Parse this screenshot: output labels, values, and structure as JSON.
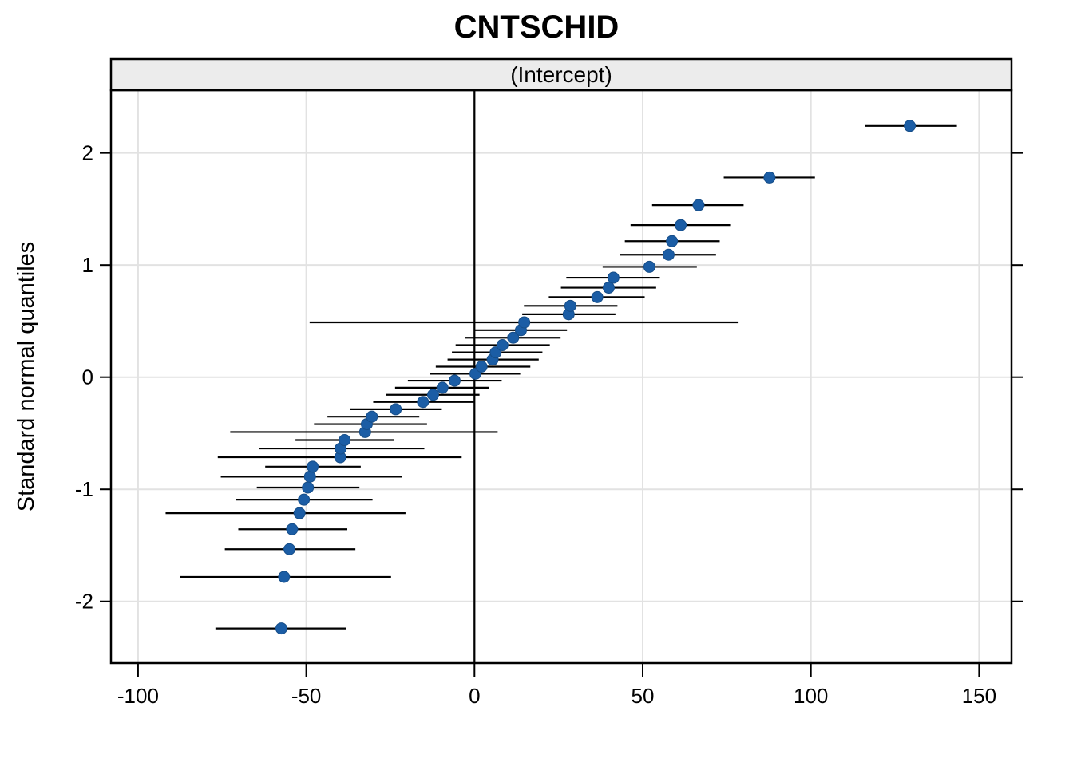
{
  "title": "CNTSCHID",
  "strip_label": "(Intercept)",
  "ylabel": "Standard normal quantiles",
  "colors": {
    "point": "#1B5DA5",
    "point_edge": "#174E88",
    "error_bar": "#000000",
    "grid": "#E2E2E2",
    "reference_line": "#000000",
    "strip_fill": "#ECECEC",
    "border": "#000000",
    "background": "#FFFFFF",
    "text": "#000000"
  },
  "chart_data": {
    "type": "scatter",
    "subtype": "caterpillar-qq-dotplot-with-ci",
    "title": "CNTSCHID",
    "panel_label": "(Intercept)",
    "xlabel": "",
    "ylabel": "Standard normal quantiles",
    "xlim": [
      -108,
      160
    ],
    "ylim": [
      -2.55,
      2.56
    ],
    "x_ticks": [
      -100,
      -50,
      0,
      50,
      100,
      150
    ],
    "x_tick_labels": [
      "-100",
      "-50",
      "0",
      "50",
      "100",
      "150"
    ],
    "y_ticks": [
      -2,
      -1,
      0,
      1,
      2
    ],
    "y_tick_labels": [
      "-2",
      "-1",
      "0",
      "1",
      "2"
    ],
    "grid": true,
    "reference_line_x": 0,
    "legend": "none",
    "n_points": 40,
    "points": [
      {
        "q": -2.241,
        "est": -57.4,
        "lo": -77.0,
        "hi": -38.2
      },
      {
        "q": -1.781,
        "est": -56.6,
        "lo": -87.6,
        "hi": -24.8
      },
      {
        "q": -1.534,
        "est": -55.0,
        "lo": -74.2,
        "hi": -35.4
      },
      {
        "q": -1.356,
        "est": -54.2,
        "lo": -70.2,
        "hi": -37.8
      },
      {
        "q": -1.213,
        "est": -52.0,
        "lo": -91.8,
        "hi": -20.5
      },
      {
        "q": -1.092,
        "est": -50.7,
        "lo": -70.8,
        "hi": -30.3
      },
      {
        "q": -0.984,
        "est": -49.5,
        "lo": -64.7,
        "hi": -34.2
      },
      {
        "q": -0.887,
        "est": -48.9,
        "lo": -75.4,
        "hi": -21.6
      },
      {
        "q": -0.798,
        "est": -48.1,
        "lo": -62.2,
        "hi": -33.8
      },
      {
        "q": -0.714,
        "est": -39.9,
        "lo": -76.3,
        "hi": -3.8
      },
      {
        "q": -0.636,
        "est": -39.8,
        "lo": -64.1,
        "hi": -14.9
      },
      {
        "q": -0.561,
        "est": -38.6,
        "lo": -53.2,
        "hi": -24.0
      },
      {
        "q": -0.489,
        "est": -32.5,
        "lo": -72.6,
        "hi": 6.9
      },
      {
        "q": -0.419,
        "est": -32.0,
        "lo": -47.7,
        "hi": -14.1
      },
      {
        "q": -0.352,
        "est": -30.5,
        "lo": -43.7,
        "hi": -16.4
      },
      {
        "q": -0.286,
        "est": -23.4,
        "lo": -37.0,
        "hi": -9.7
      },
      {
        "q": -0.221,
        "est": -15.3,
        "lo": -30.1,
        "hi": -0.2
      },
      {
        "q": -0.157,
        "est": -12.3,
        "lo": -26.2,
        "hi": 1.5
      },
      {
        "q": -0.094,
        "est": -9.5,
        "lo": -23.6,
        "hi": 4.4
      },
      {
        "q": -0.031,
        "est": -5.9,
        "lo": -19.8,
        "hi": 8.1
      },
      {
        "q": 0.031,
        "est": 0.3,
        "lo": -13.3,
        "hi": 13.6
      },
      {
        "q": 0.094,
        "est": 2.1,
        "lo": -11.5,
        "hi": 16.6
      },
      {
        "q": 0.157,
        "est": 5.4,
        "lo": -8.0,
        "hi": 19.1
      },
      {
        "q": 0.221,
        "est": 6.3,
        "lo": -6.7,
        "hi": 20.2
      },
      {
        "q": 0.286,
        "est": 8.3,
        "lo": -5.6,
        "hi": 22.4
      },
      {
        "q": 0.352,
        "est": 11.5,
        "lo": -2.8,
        "hi": 25.6
      },
      {
        "q": 0.419,
        "est": 13.8,
        "lo": 0.0,
        "hi": 27.5
      },
      {
        "q": 0.489,
        "est": 14.8,
        "lo": -49.0,
        "hi": 78.5
      },
      {
        "q": 0.561,
        "est": 28.0,
        "lo": 14.2,
        "hi": 41.9
      },
      {
        "q": 0.636,
        "est": 28.5,
        "lo": 14.7,
        "hi": 42.5
      },
      {
        "q": 0.714,
        "est": 36.5,
        "lo": 22.1,
        "hi": 50.6
      },
      {
        "q": 0.798,
        "est": 39.9,
        "lo": 25.7,
        "hi": 54.0
      },
      {
        "q": 0.887,
        "est": 41.3,
        "lo": 27.3,
        "hi": 55.1
      },
      {
        "q": 0.984,
        "est": 52.0,
        "lo": 38.1,
        "hi": 66.1
      },
      {
        "q": 1.092,
        "est": 57.7,
        "lo": 43.3,
        "hi": 71.8
      },
      {
        "q": 1.213,
        "est": 58.7,
        "lo": 44.7,
        "hi": 72.9
      },
      {
        "q": 1.356,
        "est": 61.3,
        "lo": 46.4,
        "hi": 76.0
      },
      {
        "q": 1.534,
        "est": 66.6,
        "lo": 52.8,
        "hi": 80.0
      },
      {
        "q": 1.781,
        "est": 87.7,
        "lo": 74.1,
        "hi": 101.2
      },
      {
        "q": 2.241,
        "est": 129.4,
        "lo": 116.0,
        "hi": 143.4
      }
    ]
  }
}
